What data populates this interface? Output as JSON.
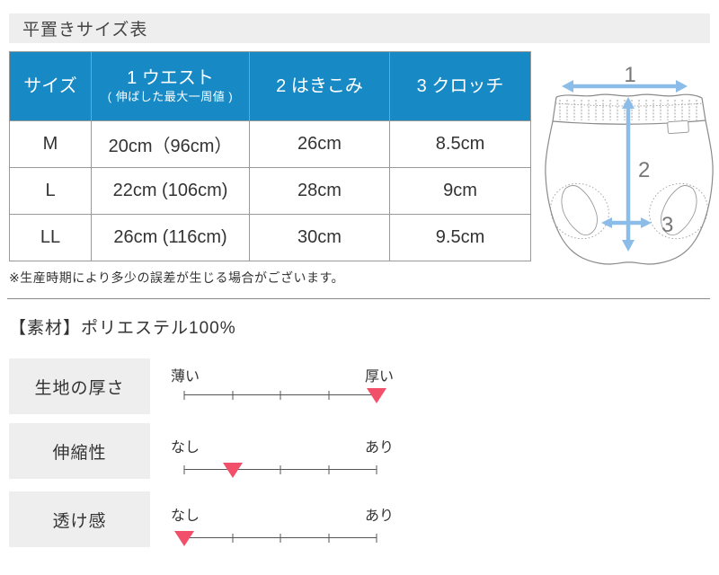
{
  "colors": {
    "table_header_bg": "#1789c5",
    "table_header_text": "#ffffff",
    "band_bg": "#eeeeee",
    "border_gray": "#999999",
    "marker_red": "#f2506a",
    "diagram_arrow_blue": "#8cbde9"
  },
  "title": "平置きサイズ表",
  "size_table": {
    "headers": {
      "size": "サイズ",
      "waist_line1": "1 ウエスト",
      "waist_line2": "( 伸ばした最大一周値 )",
      "rise": "2 はきこみ",
      "crotch": "3 クロッチ"
    },
    "rows": [
      {
        "size": "M",
        "waist": "20cm（96cm）",
        "rise": "26cm",
        "crotch": "8.5cm"
      },
      {
        "size": "L",
        "waist": "22cm (106cm)",
        "rise": "28cm",
        "crotch": "9cm"
      },
      {
        "size": "LL",
        "waist": "26cm (116cm)",
        "rise": "30cm",
        "crotch": "9.5cm"
      }
    ]
  },
  "diagram": {
    "labels": {
      "waist": "1",
      "rise": "2",
      "crotch": "3"
    }
  },
  "note": "※生産時期により多少の誤差が生じる場合がございます。",
  "material": "【素材】ポリエステル100%",
  "attributes": [
    {
      "name": "生地の厚さ",
      "left": "薄い",
      "right": "厚い",
      "level": 5,
      "max": 5,
      "percent": 100
    },
    {
      "name": "伸縮性",
      "left": "なし",
      "right": "あり",
      "level": 2,
      "max": 5,
      "percent": 25
    },
    {
      "name": "透け感",
      "left": "なし",
      "right": "あり",
      "level": 1,
      "max": 5,
      "percent": 0
    }
  ]
}
